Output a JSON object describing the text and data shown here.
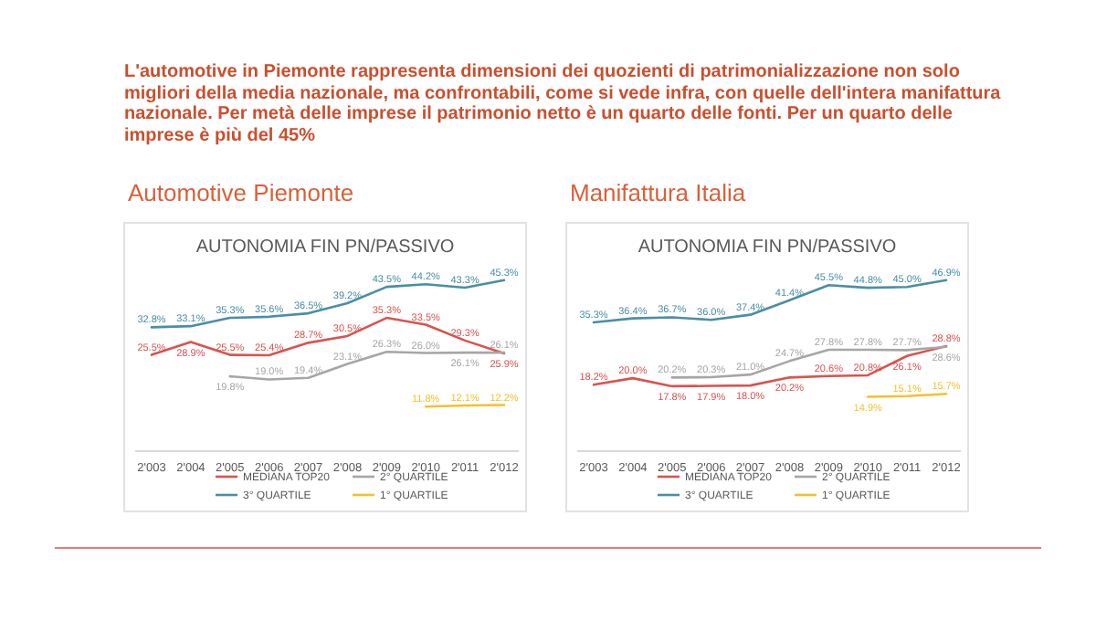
{
  "chart_data": [
    {
      "type": "line",
      "title": "AUTONOMIA FIN PN/PASSIVO",
      "subtitle": "Automotive Piemonte",
      "annotations": [
        "L'automotive in Piemonte rappresenta dimensioni dei quozienti di patrimonializzazione non solo migliori della media nazionale, ma confrontabili, come si vede infra, con quelle dell'intera manifattura nazionale. Per metà delle imprese il patrimonio netto è un quarto delle fonti. Per un quarto delle imprese è più del 45%"
      ],
      "legend": "bottom",
      "marker": "none",
      "categories": [
        "2'003",
        "2'004",
        "2'005",
        "2'006",
        "2'007",
        "2'008",
        "2'009",
        "2'010",
        "2'011",
        "2'012"
      ],
      "series": [
        {
          "name": "MEDIANA TOP20",
          "color": "#d9534f",
          "values": [
            25.5,
            28.9,
            25.5,
            25.4,
            28.7,
            30.5,
            35.3,
            33.5,
            29.3,
            25.9
          ],
          "value_labels": [
            "25.5%",
            "28.9%",
            "25.5%",
            "25.4%",
            "28.7%",
            "30.5%",
            "35.3%",
            "33.5%",
            "29.3%",
            "25.9%"
          ]
        },
        {
          "name": "2° QUARTILE",
          "color": "#a6a6a6",
          "values": [
            null,
            null,
            19.8,
            19.0,
            19.4,
            23.1,
            26.3,
            26.0,
            26.1,
            26.1
          ],
          "value_labels": [
            null,
            null,
            "19.8%",
            "19.0%",
            "19.4%",
            "23.1%",
            "26.3%",
            "26.0%",
            "26.1%",
            "26.1%"
          ]
        },
        {
          "name": "3° QUARTILE",
          "color": "#4a8ea6",
          "values": [
            32.8,
            33.1,
            35.3,
            35.6,
            36.5,
            39.2,
            43.5,
            44.2,
            43.3,
            45.3
          ],
          "value_labels": [
            "32.8%",
            "33.1%",
            "35.3%",
            "35.6%",
            "36.5%",
            "39.2%",
            "43.5%",
            "44.2%",
            "43.3%",
            "45.3%"
          ]
        },
        {
          "name": "1° QUARTILE",
          "color": "#f2c12e",
          "values": [
            null,
            null,
            null,
            null,
            null,
            null,
            null,
            11.8,
            12.1,
            12.2
          ],
          "value_labels": [
            null,
            null,
            null,
            null,
            null,
            null,
            null,
            "11.8%",
            "12.1%",
            "12.2%"
          ]
        }
      ]
    },
    {
      "type": "line",
      "title": "AUTONOMIA FIN PN/PASSIVO",
      "subtitle": "Manifattura Italia",
      "legend": "bottom",
      "marker": "none",
      "categories": [
        "2'003",
        "2'004",
        "2'005",
        "2'006",
        "2'007",
        "2'008",
        "2'009",
        "2'010",
        "2'011",
        "2'012"
      ],
      "series": [
        {
          "name": "MEDIANA TOP20",
          "color": "#d9534f",
          "values": [
            18.2,
            20.0,
            17.8,
            17.9,
            18.0,
            20.2,
            20.6,
            20.8,
            26.1,
            28.8
          ],
          "value_labels": [
            "18.2%",
            "20.0%",
            "17.8%",
            "17.9%",
            "18.0%",
            "20.2%",
            "20.6%",
            "20.8%",
            "26.1%",
            "28.8%"
          ]
        },
        {
          "name": "2° QUARTILE",
          "color": "#a6a6a6",
          "values": [
            null,
            null,
            20.2,
            20.3,
            21.0,
            24.7,
            27.8,
            27.8,
            27.7,
            28.6
          ],
          "value_labels": [
            null,
            null,
            "20.2%",
            "20.3%",
            "21.0%",
            "24.7%",
            "27.8%",
            "27.8%",
            "27.7%",
            "28.6%"
          ]
        },
        {
          "name": "3° QUARTILE",
          "color": "#4a8ea6",
          "values": [
            35.3,
            36.4,
            36.7,
            36.0,
            37.4,
            41.4,
            45.5,
            44.8,
            45.0,
            46.9
          ],
          "value_labels": [
            "35.3%",
            "36.4%",
            "36.7%",
            "36.0%",
            "37.4%",
            "41.4%",
            "45.5%",
            "44.8%",
            "45.0%",
            "46.9%"
          ]
        },
        {
          "name": "1° QUARTILE",
          "color": "#f2c12e",
          "values": [
            null,
            null,
            null,
            null,
            null,
            null,
            null,
            14.9,
            15.1,
            15.7
          ],
          "value_labels": [
            null,
            null,
            null,
            null,
            null,
            null,
            null,
            "14.9%",
            "15.1%",
            "15.7%"
          ]
        }
      ]
    }
  ]
}
